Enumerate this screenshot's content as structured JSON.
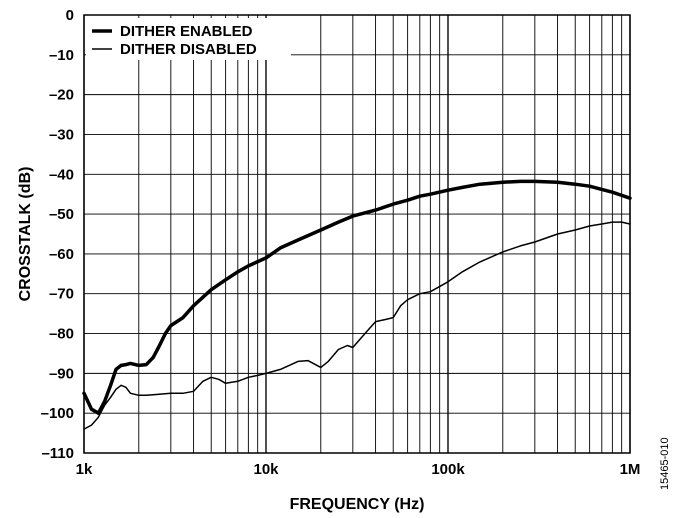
{
  "chart_data": {
    "type": "line",
    "ylabel": "CROSSTALK (dB)",
    "xlabel": "FREQUENCY (Hz)",
    "x_scale": "log",
    "xlim": [
      1000,
      1000000
    ],
    "ylim": [
      -110,
      0
    ],
    "grid": true,
    "legend_placement": "top-left",
    "x_ticks": [
      {
        "value": 1000,
        "label": "1k"
      },
      {
        "value": 10000,
        "label": "10k"
      },
      {
        "value": 100000,
        "label": "100k"
      },
      {
        "value": 1000000,
        "label": "1M"
      }
    ],
    "y_ticks": [
      {
        "value": 0,
        "label": "0"
      },
      {
        "value": -10,
        "label": "–10"
      },
      {
        "value": -20,
        "label": "–20"
      },
      {
        "value": -30,
        "label": "–30"
      },
      {
        "value": -40,
        "label": "–40"
      },
      {
        "value": -50,
        "label": "–50"
      },
      {
        "value": -60,
        "label": "–60"
      },
      {
        "value": -70,
        "label": "–70"
      },
      {
        "value": -80,
        "label": "–80"
      },
      {
        "value": -90,
        "label": "–90"
      },
      {
        "value": -100,
        "label": "–100"
      },
      {
        "value": -110,
        "label": "–110"
      }
    ],
    "series": [
      {
        "name": "DITHER ENABLED",
        "style": "thick",
        "color": "#000000",
        "x": [
          1000,
          1100,
          1200,
          1300,
          1400,
          1500,
          1600,
          1700,
          1800,
          2000,
          2200,
          2400,
          2600,
          2800,
          3000,
          3500,
          4000,
          5000,
          6000,
          7000,
          8000,
          10000,
          12000,
          15000,
          20000,
          25000,
          30000,
          40000,
          50000,
          60000,
          70000,
          80000,
          100000,
          120000,
          150000,
          200000,
          250000,
          300000,
          400000,
          500000,
          600000,
          700000,
          800000,
          900000,
          1000000
        ],
        "y": [
          -95,
          -99,
          -100,
          -97,
          -93,
          -89,
          -88,
          -87.8,
          -87.5,
          -88,
          -87.8,
          -86,
          -83,
          -80,
          -78,
          -76,
          -73,
          -69,
          -66.5,
          -64.5,
          -63,
          -61,
          -58.5,
          -56.5,
          -54,
          -52,
          -50.5,
          -49,
          -47.5,
          -46.5,
          -45.5,
          -45,
          -44,
          -43.3,
          -42.5,
          -42,
          -41.8,
          -41.8,
          -42,
          -42.5,
          -43,
          -43.8,
          -44.5,
          -45.3,
          -46
        ]
      },
      {
        "name": "DITHER DISABLED",
        "style": "thin",
        "color": "#000000",
        "x": [
          1000,
          1100,
          1200,
          1300,
          1400,
          1500,
          1600,
          1700,
          1800,
          2000,
          2200,
          2500,
          3000,
          3500,
          4000,
          4500,
          5000,
          5500,
          6000,
          7000,
          8000,
          9000,
          10000,
          12000,
          15000,
          17000,
          20000,
          22000,
          25000,
          28000,
          30000,
          35000,
          40000,
          45000,
          50000,
          55000,
          60000,
          70000,
          80000,
          100000,
          120000,
          150000,
          200000,
          250000,
          300000,
          400000,
          500000,
          600000,
          700000,
          800000,
          900000,
          1000000
        ],
        "y": [
          -104,
          -103,
          -101,
          -98,
          -96,
          -94,
          -93,
          -93.5,
          -95,
          -95.5,
          -95.5,
          -95.3,
          -95,
          -95,
          -94.5,
          -92,
          -91,
          -91.5,
          -92.5,
          -92,
          -91,
          -90.5,
          -90,
          -89,
          -87,
          -86.8,
          -88.5,
          -87,
          -84,
          -83,
          -83.5,
          -80,
          -77,
          -76.5,
          -76,
          -73,
          -71.5,
          -70,
          -69.5,
          -67,
          -64.5,
          -62,
          -59.5,
          -58,
          -57,
          -55,
          -54,
          -53,
          -52.5,
          -52,
          -52,
          -52.5
        ]
      }
    ]
  },
  "figure_id": "15465-010"
}
